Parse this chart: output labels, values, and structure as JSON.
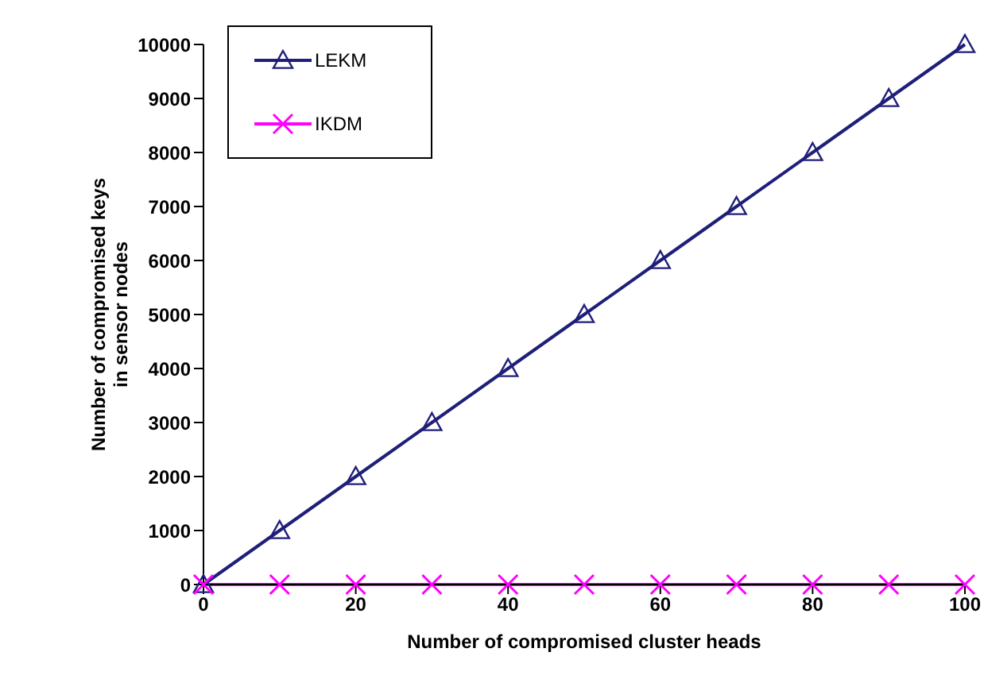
{
  "chart_data": {
    "type": "line",
    "xlabel": "Number of compromised cluster heads",
    "ylabel": "Number of compromised keys\nin sensor nodes",
    "x": [
      0,
      10,
      20,
      30,
      40,
      50,
      60,
      70,
      80,
      90,
      100
    ],
    "series": [
      {
        "name": "LEKM",
        "color": "#1f1f7a",
        "marker": "triangle",
        "values": [
          0,
          1000,
          2000,
          3000,
          4000,
          5000,
          6000,
          7000,
          8000,
          9000,
          10000
        ]
      },
      {
        "name": "IKDM",
        "color": "#ff00ff",
        "marker": "cross",
        "values": [
          0,
          0,
          0,
          0,
          0,
          0,
          0,
          0,
          0,
          0,
          0
        ]
      }
    ],
    "xlim": [
      0,
      100
    ],
    "xticks": [
      0,
      20,
      40,
      60,
      80,
      100
    ],
    "ylim": [
      0,
      10000
    ],
    "yticks": [
      0,
      1000,
      2000,
      3000,
      4000,
      5000,
      6000,
      7000,
      8000,
      9000,
      10000
    ],
    "grid": false,
    "legend": "top left",
    "line_style": "solid"
  }
}
